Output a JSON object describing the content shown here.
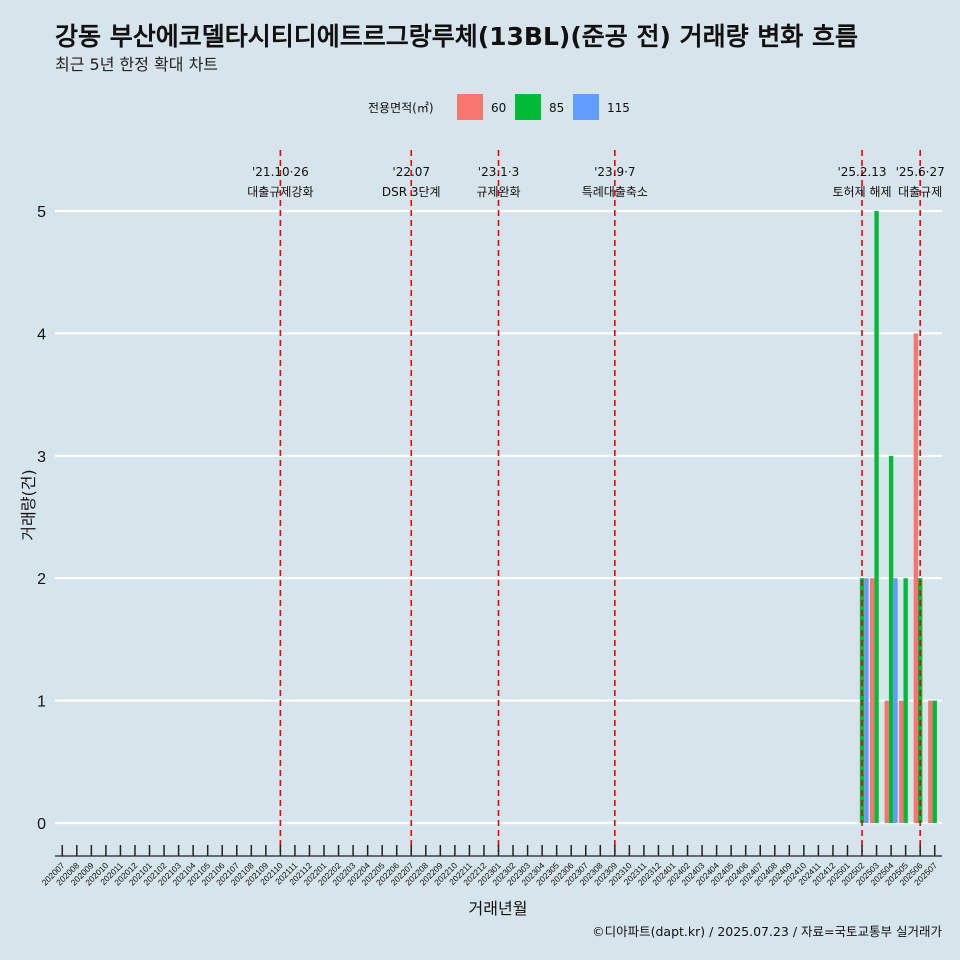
{
  "chart_data": {
    "type": "bar",
    "title": "강동 부산에코델타시티디에트르그랑루체(13BL)(준공 전) 거래량 변화 흐름",
    "subtitle": "최근 5년 한정 확대 차트",
    "xlabel": "거래년월",
    "ylabel": "거래량(건)",
    "caption": "©디아파트(dapt.kr) / 2025.07.23 / 자료=국토교통부 실거래가",
    "ylim": [
      0,
      5
    ],
    "yticks": [
      0,
      1,
      2,
      3,
      4,
      5
    ],
    "legend_title": "전용면적(㎡)",
    "categories": [
      "202007",
      "202008",
      "202009",
      "202010",
      "202011",
      "202012",
      "202101",
      "202102",
      "202103",
      "202104",
      "202105",
      "202106",
      "202107",
      "202108",
      "202109",
      "202110",
      "202111",
      "202112",
      "202201",
      "202202",
      "202203",
      "202204",
      "202205",
      "202206",
      "202207",
      "202208",
      "202209",
      "202210",
      "202211",
      "202212",
      "202301",
      "202302",
      "202303",
      "202304",
      "202305",
      "202306",
      "202307",
      "202308",
      "202309",
      "202310",
      "202311",
      "202312",
      "202401",
      "202402",
      "202403",
      "202404",
      "202405",
      "202406",
      "202407",
      "202408",
      "202409",
      "202410",
      "202411",
      "202412",
      "202501",
      "202502",
      "202503",
      "202504",
      "202505",
      "202506",
      "202507"
    ],
    "series": [
      {
        "name": "60",
        "color": "#f8766d",
        "values": {
          "202503": 2,
          "202504": 1,
          "202505": 1,
          "202506": 4,
          "202507": 1
        }
      },
      {
        "name": "85",
        "color": "#00ba38",
        "values": {
          "202502": 2,
          "202503": 5,
          "202504": 3,
          "202505": 2,
          "202506": 2,
          "202507": 1
        }
      },
      {
        "name": "115",
        "color": "#619cff",
        "values": {
          "202502": 2,
          "202504": 2
        }
      }
    ],
    "annotations": [
      {
        "month": "202110",
        "date": "'21.10·26",
        "label": "대출규제강화"
      },
      {
        "month": "202207",
        "date": "'22.07",
        "label": "DSR 3단계"
      },
      {
        "month": "202301",
        "date": "'23.1·3",
        "label": "규제완화"
      },
      {
        "month": "202309",
        "date": "'23.9·7",
        "label": "특례대출축소"
      },
      {
        "month": "202502",
        "date": "'25.2.13",
        "label": "토허제 해제"
      },
      {
        "month": "202506",
        "date": "'25.6·27",
        "label": "대출규제"
      }
    ]
  }
}
